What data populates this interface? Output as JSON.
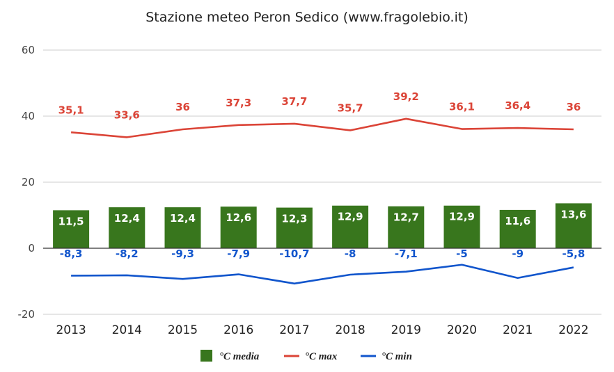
{
  "chart_data": {
    "type": "bar",
    "title": "Stazione meteo Peron Sedico (www.fragolebio.it)",
    "xlabel": "",
    "ylabel": "",
    "ylim": [
      -20,
      60
    ],
    "yticks": [
      -20,
      0,
      20,
      40,
      60
    ],
    "categories": [
      "2013",
      "2014",
      "2015",
      "2016",
      "2017",
      "2018",
      "2019",
      "2020",
      "2021",
      "2022"
    ],
    "series": [
      {
        "name": "°C media",
        "kind": "bar",
        "color": "#38761d",
        "values": [
          11.5,
          12.4,
          12.4,
          12.6,
          12.3,
          12.9,
          12.7,
          12.9,
          11.6,
          13.6
        ],
        "labels": [
          "11,5",
          "12,4",
          "12,4",
          "12,6",
          "12,3",
          "12,9",
          "12,7",
          "12,9",
          "11,6",
          "13,6"
        ]
      },
      {
        "name": "°C max",
        "kind": "line",
        "color": "#db4437",
        "values": [
          35.1,
          33.6,
          36,
          37.3,
          37.7,
          35.7,
          39.2,
          36.1,
          36.4,
          36
        ],
        "labels": [
          "35,1",
          "33,6",
          "36",
          "37,3",
          "37,7",
          "35,7",
          "39,2",
          "36,1",
          "36,4",
          "36"
        ]
      },
      {
        "name": "°C min",
        "kind": "line",
        "color": "#1155cc",
        "values": [
          -8.3,
          -8.2,
          -9.3,
          -7.9,
          -10.7,
          -8,
          -7.1,
          -5,
          -9,
          -5.8
        ],
        "labels": [
          "-8,3",
          "-8,2",
          "-9,3",
          "-7,9",
          "-10,7",
          "-8",
          "-7,1",
          "-5",
          "-9",
          "-5,8"
        ]
      }
    ],
    "grid": true,
    "legend_position": "bottom"
  }
}
